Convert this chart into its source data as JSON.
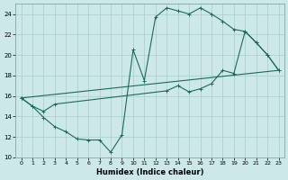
{
  "xlabel": "Humidex (Indice chaleur)",
  "bg_color": "#cce8e8",
  "grid_color": "#aacccc",
  "line_color": "#1a6b5a",
  "xlim": [
    -0.5,
    23.5
  ],
  "ylim": [
    10,
    25
  ],
  "yticks": [
    10,
    12,
    14,
    16,
    18,
    20,
    22,
    24
  ],
  "xticks": [
    0,
    1,
    2,
    3,
    4,
    5,
    6,
    7,
    8,
    9,
    10,
    11,
    12,
    13,
    14,
    15,
    16,
    17,
    18,
    19,
    20,
    21,
    22,
    23
  ],
  "line1_x": [
    0,
    1,
    2,
    3,
    4,
    5,
    6,
    7,
    8,
    9,
    10,
    11,
    12,
    13,
    14,
    15,
    16,
    17,
    18,
    19,
    20,
    21,
    22,
    23
  ],
  "line1_y": [
    15.8,
    15.0,
    13.9,
    13.0,
    12.5,
    11.8,
    11.7,
    11.7,
    10.5,
    12.2,
    20.5,
    17.5,
    23.7,
    24.6,
    24.3,
    24.0,
    24.6,
    24.0,
    23.3,
    22.5,
    22.3,
    21.2,
    20.0,
    18.5
  ],
  "line2_x": [
    0,
    23
  ],
  "line2_y": [
    15.8,
    18.5
  ],
  "line3_x": [
    0,
    1,
    2,
    3,
    13,
    14,
    15,
    16,
    17,
    18,
    19,
    20,
    21,
    22,
    23
  ],
  "line3_y": [
    15.8,
    15.0,
    14.5,
    15.2,
    16.5,
    17.0,
    16.4,
    16.7,
    17.2,
    18.5,
    18.2,
    22.3,
    21.2,
    20.0,
    18.5
  ]
}
